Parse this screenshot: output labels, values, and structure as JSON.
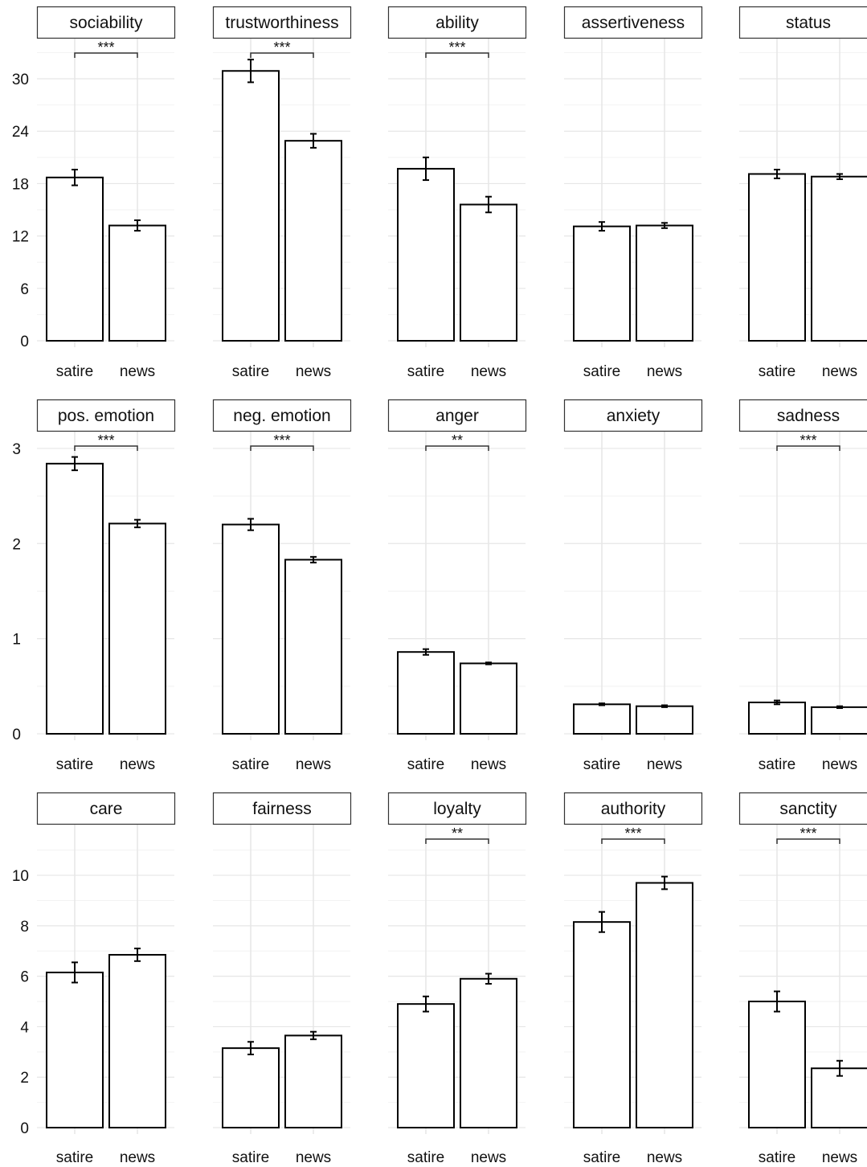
{
  "chart_data": {
    "type": "bar",
    "categories": [
      "satire",
      "news"
    ],
    "rows": [
      {
        "yticks": [
          "0",
          "6",
          "12",
          "18",
          "24",
          "30"
        ],
        "ylim": [
          0,
          33.5
        ],
        "panels": [
          {
            "title": "sociability",
            "values": [
              18.7,
              13.2
            ],
            "errors": [
              0.9,
              0.6
            ],
            "sig": "***"
          },
          {
            "title": "trustworthiness",
            "values": [
              30.9,
              22.9
            ],
            "errors": [
              1.3,
              0.8
            ],
            "sig": "***"
          },
          {
            "title": "ability",
            "values": [
              19.7,
              15.6
            ],
            "errors": [
              1.3,
              0.9
            ],
            "sig": "***"
          },
          {
            "title": "assertiveness",
            "values": [
              13.1,
              13.2
            ],
            "errors": [
              0.5,
              0.3
            ],
            "sig": ""
          },
          {
            "title": "status",
            "values": [
              19.1,
              18.8
            ],
            "errors": [
              0.5,
              0.3
            ],
            "sig": ""
          }
        ]
      },
      {
        "yticks": [
          "0",
          "1",
          "2",
          "3"
        ],
        "ylim": [
          0,
          3.05
        ],
        "panels": [
          {
            "title": "pos. emotion",
            "values": [
              2.84,
              2.21
            ],
            "errors": [
              0.07,
              0.04
            ],
            "sig": "***"
          },
          {
            "title": "neg. emotion",
            "values": [
              2.2,
              1.83
            ],
            "errors": [
              0.06,
              0.03
            ],
            "sig": "***"
          },
          {
            "title": "anger",
            "values": [
              0.86,
              0.74
            ],
            "errors": [
              0.03,
              0.01
            ],
            "sig": "**"
          },
          {
            "title": "anxiety",
            "values": [
              0.31,
              0.29
            ],
            "errors": [
              0.01,
              0.01
            ],
            "sig": ""
          },
          {
            "title": "sadness",
            "values": [
              0.33,
              0.28
            ],
            "errors": [
              0.02,
              0.01
            ],
            "sig": "***"
          }
        ]
      },
      {
        "yticks": [
          "0",
          "2",
          "4",
          "6",
          "8",
          "10"
        ],
        "ylim": [
          0,
          11.5
        ],
        "panels": [
          {
            "title": "care",
            "values": [
              6.15,
              6.85
            ],
            "errors": [
              0.4,
              0.25
            ],
            "sig": ""
          },
          {
            "title": "fairness",
            "values": [
              3.15,
              3.65
            ],
            "errors": [
              0.25,
              0.15
            ],
            "sig": ""
          },
          {
            "title": "loyalty",
            "values": [
              4.9,
              5.9
            ],
            "errors": [
              0.3,
              0.2
            ],
            "sig": "**"
          },
          {
            "title": "authority",
            "values": [
              8.15,
              9.7
            ],
            "errors": [
              0.4,
              0.25
            ],
            "sig": "***"
          },
          {
            "title": "sanctity",
            "values": [
              5.0,
              2.35
            ],
            "errors": [
              0.4,
              0.3
            ],
            "sig": "***"
          }
        ]
      }
    ],
    "grid": true,
    "xlabel": "",
    "ylabel": ""
  }
}
